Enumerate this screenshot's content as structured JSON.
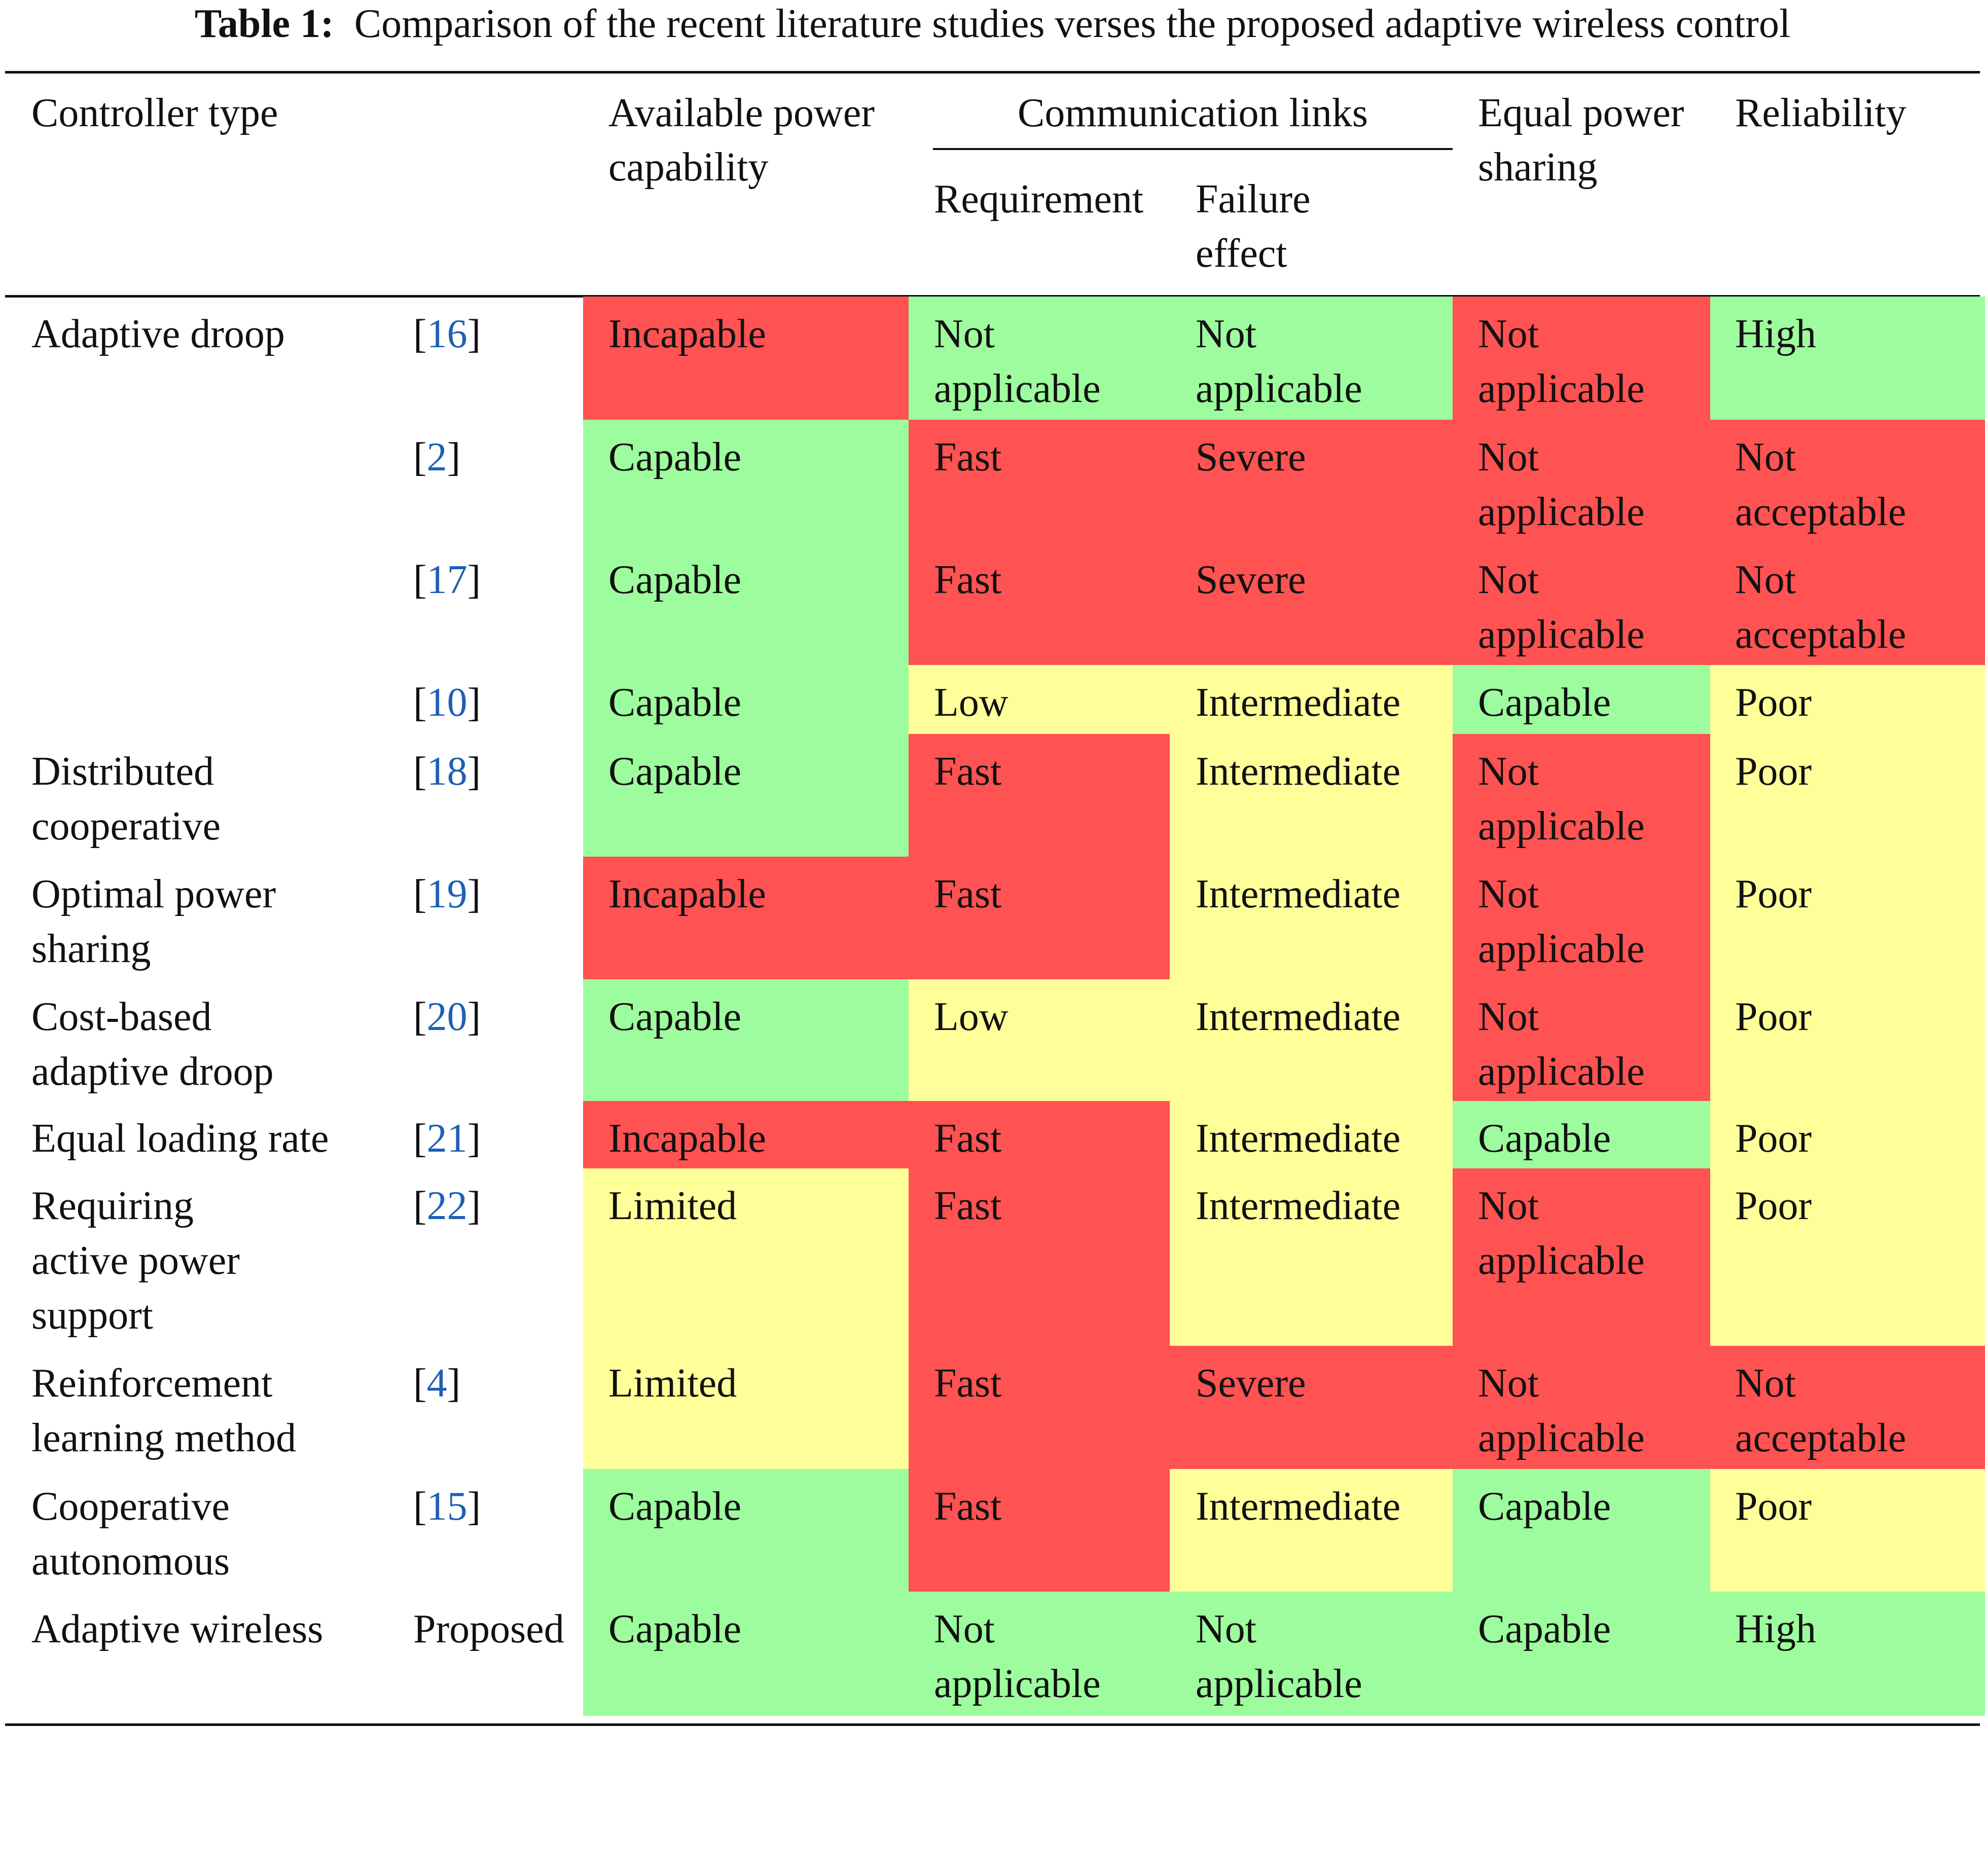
{
  "caption": {
    "label": "Table 1:",
    "text": "Comparison of the recent literature studies verses the proposed adaptive wireless control"
  },
  "headers": {
    "controller_type": "Controller type",
    "available_power": "Available power\ncapability",
    "communication_links": "Communication links",
    "requirement": "Requirement",
    "failure_effect": "Failure\neffect",
    "equal_power_sharing": "Equal power\nsharing",
    "reliability": "Reliability"
  },
  "colors": {
    "red": "#ff5252",
    "green": "#9dfc9d",
    "yellow": "#ffff99",
    "link": "#1f5fb5"
  },
  "rows": [
    {
      "controller": "Adaptive droop",
      "ref": "16",
      "power": "Incapable",
      "requirement": "Not\napplicable",
      "failure": "Not\napplicable",
      "sharing": "Not\napplicable",
      "reliability": "High"
    },
    {
      "controller": "",
      "ref": "2",
      "power": "Capable",
      "requirement": "Fast",
      "failure": "Severe",
      "sharing": "Not\napplicable",
      "reliability": "Not\nacceptable"
    },
    {
      "controller": "",
      "ref": "17",
      "power": "Capable",
      "requirement": "Fast",
      "failure": "Severe",
      "sharing": "Not\napplicable",
      "reliability": "Not\nacceptable"
    },
    {
      "controller": "",
      "ref": "10",
      "power": "Capable",
      "requirement": "Low",
      "failure": "Intermediate",
      "sharing": "Capable",
      "reliability": "Poor"
    },
    {
      "controller": "Distributed\ncooperative",
      "ref": "18",
      "power": "Capable",
      "requirement": "Fast",
      "failure": "Intermediate",
      "sharing": "Not\napplicable",
      "reliability": "Poor"
    },
    {
      "controller": "Optimal power\nsharing",
      "ref": "19",
      "power": "Incapable",
      "requirement": "Fast",
      "failure": "Intermediate",
      "sharing": "Not\napplicable",
      "reliability": "Poor"
    },
    {
      "controller": "Cost-based\nadaptive droop",
      "ref": "20",
      "power": "Capable",
      "requirement": "Low",
      "failure": "Intermediate",
      "sharing": "Not\napplicable",
      "reliability": "Poor"
    },
    {
      "controller": "Equal loading rate",
      "ref": "21",
      "power": "Incapable",
      "requirement": "Fast",
      "failure": "Intermediate",
      "sharing": "Capable",
      "reliability": "Poor"
    },
    {
      "controller": "Requiring\nactive power\nsupport",
      "ref": "22",
      "power": "Limited",
      "requirement": "Fast",
      "failure": "Intermediate",
      "sharing": "Not\napplicable",
      "reliability": "Poor"
    },
    {
      "controller": "Reinforcement\nlearning method",
      "ref": "4",
      "power": "Limited",
      "requirement": "Fast",
      "failure": "Severe",
      "sharing": "Not\napplicable",
      "reliability": "Not\nacceptable"
    },
    {
      "controller": "Cooperative\nautonomous",
      "ref": "15",
      "power": "Capable",
      "requirement": "Fast",
      "failure": "Intermediate",
      "sharing": "Capable",
      "reliability": "Poor"
    },
    {
      "controller": "Adaptive wireless",
      "ref": "Proposed",
      "power": "Capable",
      "requirement": "Not\napplicable",
      "failure": "Not\napplicable",
      "sharing": "Capable",
      "reliability": "High"
    }
  ]
}
